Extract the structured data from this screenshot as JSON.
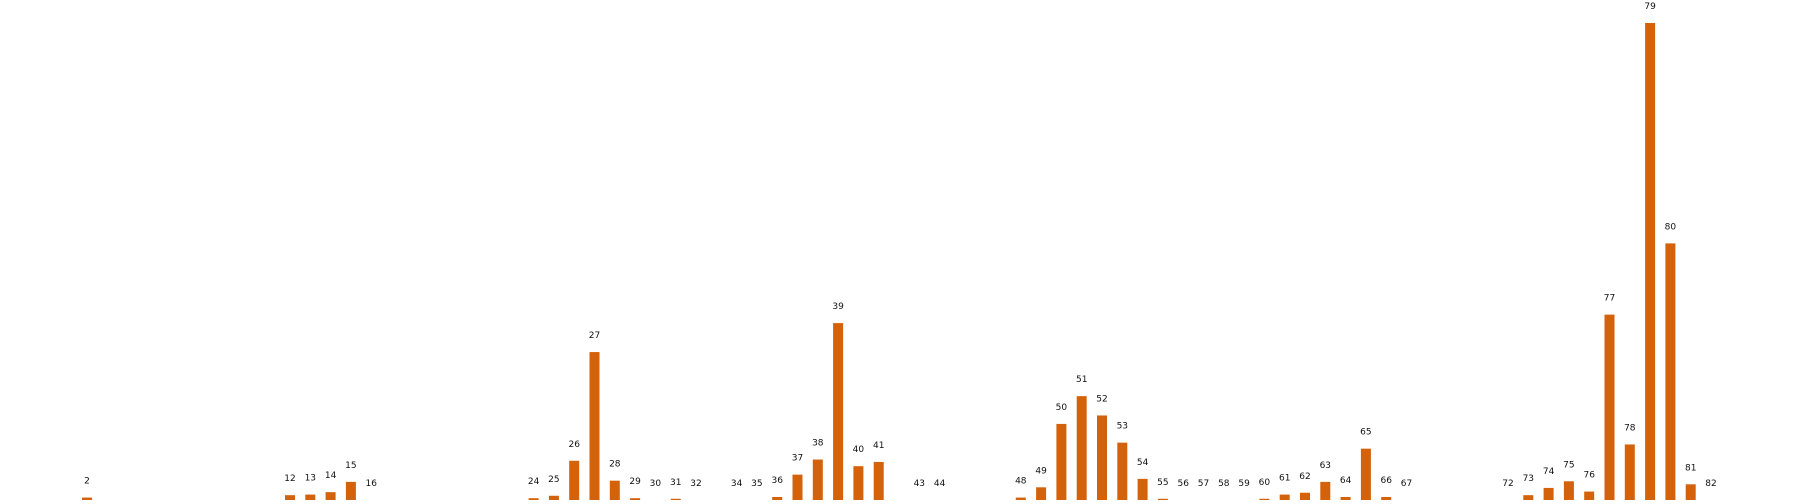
{
  "chart_data": {
    "type": "bar",
    "title": "",
    "xlabel": "",
    "ylabel": "",
    "ylim": [
      0,
      79
    ],
    "grid": false,
    "legend": "none",
    "bar_color": "#d4620a",
    "label_color": "#111111",
    "categories": [
      "2",
      "12",
      "13",
      "14",
      "15",
      "16",
      "24",
      "25",
      "26",
      "27",
      "28",
      "29",
      "30",
      "31",
      "32",
      "34",
      "35",
      "36",
      "37",
      "38",
      "39",
      "40",
      "41",
      "43",
      "44",
      "48",
      "49",
      "50",
      "51",
      "52",
      "53",
      "54",
      "55",
      "56",
      "57",
      "58",
      "59",
      "60",
      "61",
      "62",
      "63",
      "64",
      "65",
      "66",
      "67",
      "72",
      "73",
      "74",
      "75",
      "76",
      "77",
      "78",
      "79",
      "80",
      "81",
      "82"
    ],
    "x": [
      2,
      12,
      13,
      14,
      15,
      16,
      24,
      25,
      26,
      27,
      28,
      29,
      30,
      31,
      32,
      34,
      35,
      36,
      37,
      38,
      39,
      40,
      41,
      43,
      44,
      48,
      49,
      50,
      51,
      52,
      53,
      54,
      55,
      56,
      57,
      58,
      59,
      60,
      61,
      62,
      63,
      64,
      65,
      66,
      67,
      72,
      73,
      74,
      75,
      76,
      77,
      78,
      79,
      80,
      81,
      82
    ],
    "values": [
      0.4,
      0.8,
      0.9,
      1.3,
      3.0,
      0,
      0.3,
      0.7,
      6.5,
      24.5,
      3.2,
      0.3,
      0,
      0.2,
      0,
      0,
      0,
      0.5,
      4.2,
      6.7,
      29.3,
      5.6,
      6.3,
      0,
      0,
      0.4,
      2.1,
      12.6,
      17.2,
      14.0,
      9.5,
      3.5,
      0.2,
      0,
      0,
      0,
      0,
      0.2,
      0.9,
      1.2,
      3.0,
      0.5,
      8.5,
      0.5,
      0,
      0,
      0.8,
      2.0,
      3.1,
      1.4,
      30.7,
      9.2,
      79,
      42.5,
      2.6,
      0
    ]
  }
}
